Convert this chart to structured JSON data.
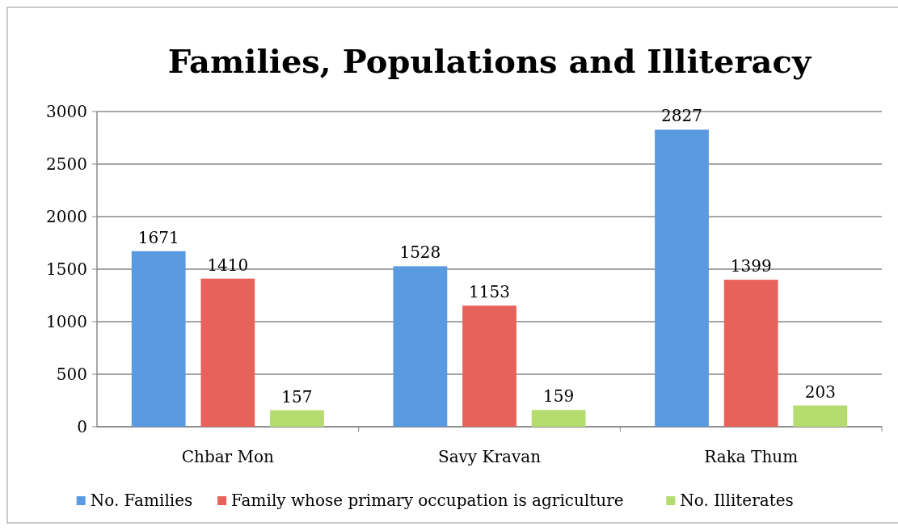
{
  "chart_data": {
    "type": "bar",
    "title": "Families, Populations and Illiteracy",
    "categories": [
      "Chbar Mon",
      "Savy Kravan",
      "Raka Thum"
    ],
    "series": [
      {
        "name": "No. Families",
        "color": "#5a9ae0",
        "values": [
          1671,
          1528,
          2827
        ]
      },
      {
        "name": "Family whose primary occupation is agriculture",
        "color": "#e8625c",
        "values": [
          1410,
          1153,
          1399
        ]
      },
      {
        "name": "No. Illiterates",
        "color": "#b4dc6e",
        "values": [
          157,
          159,
          203
        ]
      }
    ],
    "ylim": [
      0,
      3000
    ],
    "yticks": [
      0,
      500,
      1000,
      1500,
      2000,
      2500,
      3000
    ],
    "grid": "y",
    "data_labels": true,
    "legend": "bottom"
  }
}
